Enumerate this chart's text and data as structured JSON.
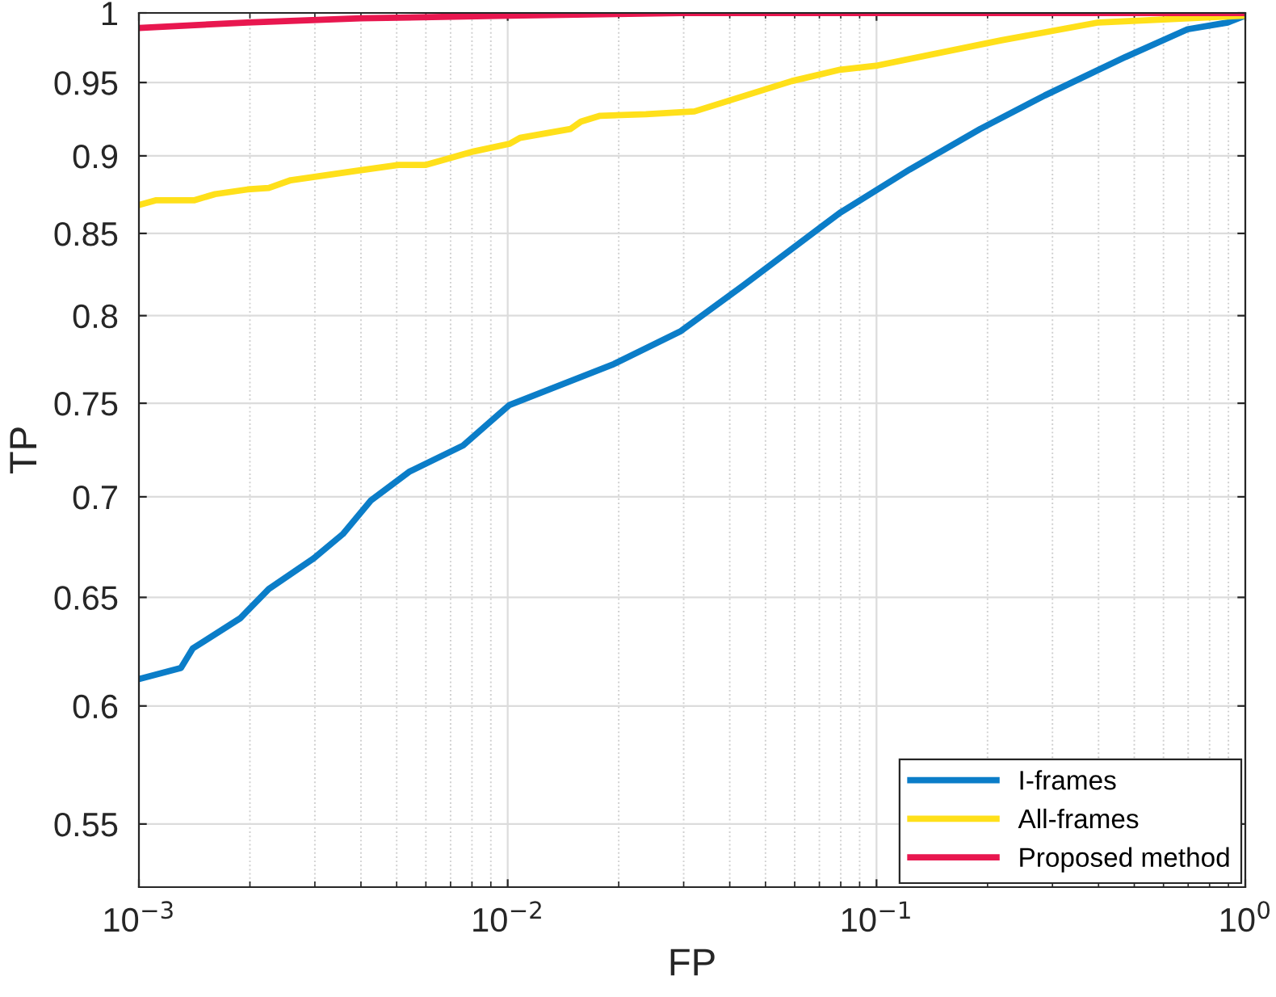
{
  "chart_data": {
    "type": "line",
    "xlabel": "FP",
    "ylabel": "TP",
    "log": "xy",
    "grid": true,
    "legend": "bottom right",
    "line_style": "solid",
    "marker": "none",
    "xlim": [
      0.001,
      1
    ],
    "ylim": [
      0.525,
      1
    ],
    "xticks": [
      {
        "value": 0.001,
        "label": "10$^{−3}$"
      },
      {
        "value": 0.01,
        "label": "10$^{−2}$"
      },
      {
        "value": 0.1,
        "label": "10$^{−1}$"
      },
      {
        "value": 1,
        "label": "10$^{0}$"
      }
    ],
    "yticks": [
      0.55,
      0.6,
      0.65,
      0.7,
      0.75,
      0.8,
      0.85,
      0.9,
      0.95,
      1
    ],
    "series": [
      {
        "name": "I-frames",
        "color": "#0b7dc8",
        "x": [
          0.001,
          0.0013,
          0.0014,
          0.00188,
          0.00225,
          0.00298,
          0.00357,
          0.00425,
          0.0054,
          0.00757,
          0.0101,
          0.0194,
          0.0295,
          0.0435,
          0.0796,
          0.123,
          0.191,
          0.286,
          0.473,
          0.697,
          0.896,
          1.0
        ],
        "values": [
          0.612,
          0.617,
          0.626,
          0.64,
          0.654,
          0.669,
          0.681,
          0.698,
          0.713,
          0.727,
          0.749,
          0.772,
          0.791,
          0.818,
          0.863,
          0.891,
          0.918,
          0.941,
          0.968,
          0.988,
          0.993,
          0.998
        ]
      },
      {
        "name": "All-frames",
        "color": "#ffe01a",
        "x": [
          0.001,
          0.00111,
          0.00141,
          0.00161,
          0.00197,
          0.00225,
          0.00258,
          0.00386,
          0.00506,
          0.00598,
          0.0081,
          0.0101,
          0.0108,
          0.0148,
          0.0158,
          0.0178,
          0.0237,
          0.0321,
          0.0589,
          0.0796,
          0.1007,
          0.218,
          0.4,
          1.0
        ],
        "values": [
          0.868,
          0.871,
          0.871,
          0.875,
          0.878,
          0.879,
          0.884,
          0.89,
          0.894,
          0.894,
          0.903,
          0.908,
          0.912,
          0.918,
          0.923,
          0.927,
          0.928,
          0.93,
          0.951,
          0.959,
          0.962,
          0.98,
          0.993,
          0.998
        ]
      },
      {
        "name": "Proposed method",
        "color": "#e8174f",
        "x": [
          0.001,
          0.00197,
          0.004,
          0.0101,
          0.0298,
          1.0
        ],
        "values": [
          0.989,
          0.993,
          0.996,
          0.998,
          1.0,
          1.0
        ]
      }
    ]
  }
}
